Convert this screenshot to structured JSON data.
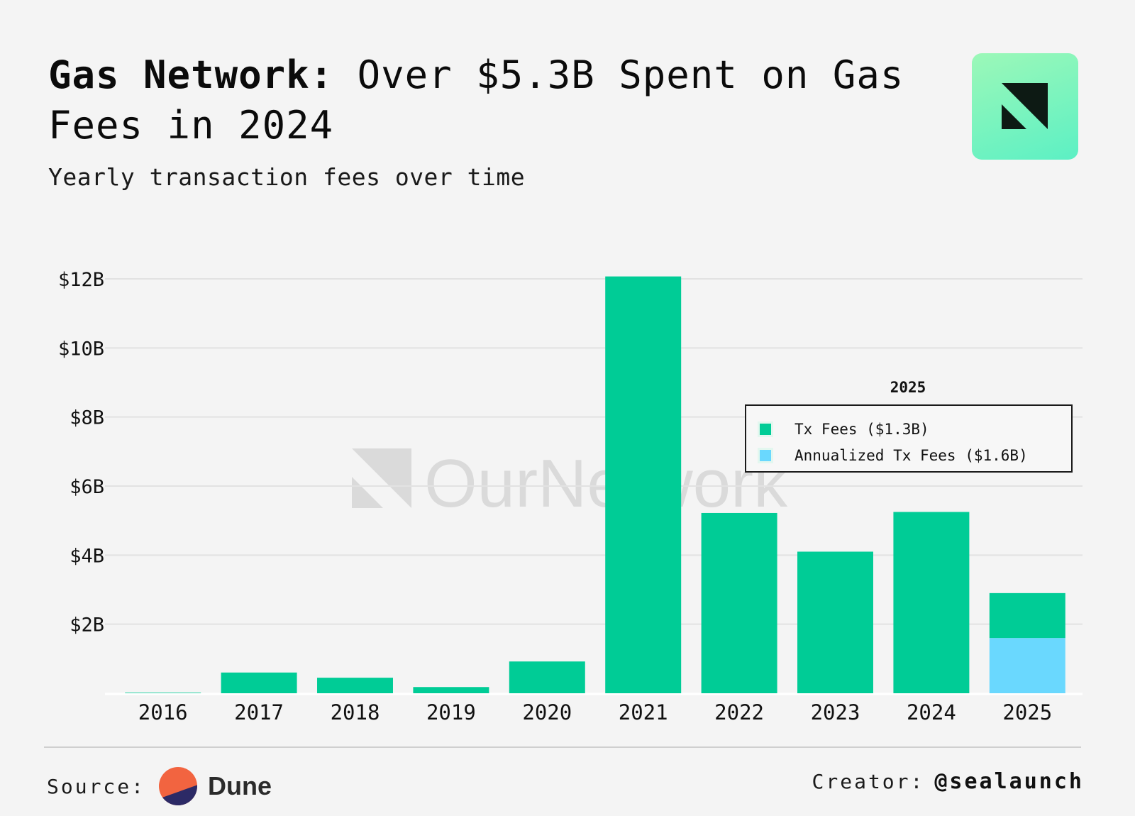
{
  "header": {
    "title_bold": "Gas Network:",
    "title_rest": " Over $5.3B Spent on Gas Fees in 2024",
    "subtitle": "Yearly transaction fees over time"
  },
  "watermark": "OurNetwork",
  "colors": {
    "tx_fees": "#00cc96",
    "annualized": "#6ad8fe",
    "logo_gradient_top": "#9cf8b8",
    "logo_gradient_bottom": "#5cf0c4"
  },
  "chart_data": {
    "type": "bar",
    "stacked": true,
    "categories": [
      "2016",
      "2017",
      "2018",
      "2019",
      "2020",
      "2021",
      "2022",
      "2023",
      "2024",
      "2025"
    ],
    "series": [
      {
        "name": "Annualized Tx Fees",
        "values": [
          0,
          0,
          0,
          0,
          0,
          0,
          0,
          0,
          0,
          1.6
        ]
      },
      {
        "name": "Tx Fees",
        "values": [
          0.01,
          0.6,
          0.45,
          0.18,
          0.92,
          12.07,
          5.22,
          4.1,
          5.25,
          1.3
        ]
      }
    ],
    "y_ticks": [
      {
        "value": 2,
        "label": "$2B"
      },
      {
        "value": 4,
        "label": "$4B"
      },
      {
        "value": 6,
        "label": "$6B"
      },
      {
        "value": 8,
        "label": "$8B"
      },
      {
        "value": 10,
        "label": "$10B"
      },
      {
        "value": 12,
        "label": "$12B"
      }
    ],
    "ylim": [
      0,
      12
    ],
    "grid": true,
    "legend": {
      "title": "2025",
      "position": "right",
      "items": [
        {
          "label": "Tx Fees ($1.3B)",
          "color": "#00cc96"
        },
        {
          "label": "Annualized Tx Fees ($1.6B)",
          "color": "#6ad8fe"
        }
      ]
    }
  },
  "footer": {
    "source_label": "Source:",
    "source_name": "Dune",
    "creator_label": "Creator:",
    "creator_handle": "@sealaunch"
  }
}
